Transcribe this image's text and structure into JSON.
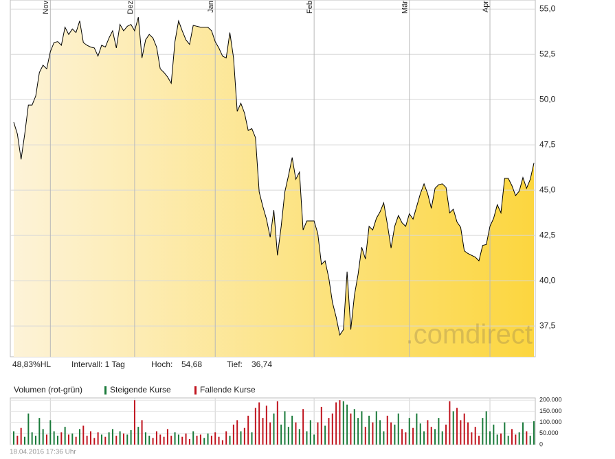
{
  "chart_data": {
    "type": "area",
    "color": "#000000",
    "fill_from": "#fdf3d8",
    "fill_to": "#fcd63f",
    "categories": [
      null,
      null,
      null,
      null,
      null,
      null,
      null,
      null,
      null,
      null,
      "Nov",
      null,
      null,
      null,
      null,
      null,
      null,
      null,
      null,
      null,
      null,
      null,
      null,
      null,
      null,
      null,
      null,
      null,
      null,
      null,
      null,
      null,
      null,
      "Dez",
      null,
      null,
      null,
      null,
      null,
      null,
      null,
      null,
      null,
      null,
      null,
      null,
      null,
      null,
      null,
      null,
      null,
      null,
      null,
      null,
      null,
      "Jan",
      null,
      null,
      null,
      null,
      null,
      null,
      null,
      null,
      null,
      null,
      null,
      null,
      null,
      null,
      null,
      null,
      null,
      null,
      null,
      null,
      null,
      null,
      null,
      null,
      null,
      null,
      "Feb",
      null,
      null,
      null,
      null,
      null,
      null,
      null,
      null,
      null,
      null,
      null,
      null,
      null,
      null,
      null,
      null,
      null,
      null,
      null,
      null,
      null,
      null,
      null,
      null,
      null,
      "Mär",
      null,
      null,
      null,
      null,
      null,
      null,
      null,
      null,
      null,
      null,
      null,
      null,
      null,
      null,
      null,
      null,
      null,
      null,
      null,
      null,
      null,
      "Apr",
      null,
      null,
      null,
      null,
      null,
      null,
      null,
      null,
      null,
      null,
      null,
      null
    ],
    "values": [
      48.75,
      48.1,
      46.7,
      48.1,
      49.7,
      49.7,
      50.2,
      51.5,
      51.9,
      51.7,
      52.65,
      53.15,
      53.2,
      53.0,
      54.0,
      53.6,
      53.9,
      53.7,
      54.35,
      53.15,
      53.0,
      52.9,
      52.85,
      52.4,
      53.0,
      52.9,
      53.4,
      53.8,
      52.85,
      54.15,
      53.8,
      54.05,
      54.15,
      53.8,
      54.55,
      52.3,
      53.3,
      53.6,
      53.4,
      52.9,
      51.7,
      51.5,
      51.25,
      50.9,
      53.2,
      54.35,
      53.8,
      53.3,
      53.05,
      54.1,
      54.05,
      54.0,
      54.0,
      54.0,
      53.8,
      53.2,
      52.85,
      52.4,
      52.3,
      53.7,
      52.3,
      49.35,
      49.8,
      49.25,
      48.3,
      48.4,
      47.9,
      44.9,
      44.1,
      43.4,
      42.4,
      43.9,
      41.4,
      43.0,
      44.9,
      45.8,
      46.8,
      45.6,
      46.0,
      42.8,
      43.3,
      43.3,
      43.3,
      42.6,
      40.9,
      41.1,
      40.15,
      38.8,
      38.0,
      37.0,
      37.3,
      40.5,
      37.3,
      39.2,
      40.35,
      41.85,
      41.2,
      43.0,
      42.8,
      43.45,
      43.8,
      44.3,
      43.1,
      41.8,
      43.0,
      43.6,
      43.2,
      43.0,
      43.7,
      43.4,
      44.1,
      44.8,
      45.35,
      44.8,
      44.0,
      45.1,
      45.3,
      45.35,
      45.15,
      43.75,
      43.95,
      43.25,
      42.95,
      41.65,
      41.5,
      41.4,
      41.3,
      41.1,
      41.95,
      42.0,
      43.0,
      43.45,
      44.2,
      43.75,
      45.65,
      45.65,
      45.25,
      44.7,
      44.95,
      45.7,
      45.1,
      45.6,
      46.5
    ],
    "ylim": [
      35.8,
      55.5
    ],
    "yticks": [
      {
        "value": 37.5,
        "label": "37,5"
      },
      {
        "value": 40,
        "label": "40,0"
      },
      {
        "value": 42.5,
        "label": "42,5"
      },
      {
        "value": 45,
        "label": "45,0"
      },
      {
        "value": 47.5,
        "label": "47,5"
      },
      {
        "value": 50,
        "label": "50,0"
      },
      {
        "value": 52.5,
        "label": "52,5"
      },
      {
        "value": 55,
        "label": "55,0"
      }
    ],
    "grid": true,
    "watermark": ".comdirect",
    "stats": {
      "range": "48,83%HL",
      "interval": "Intervall: 1 Tag",
      "high_label": "Hoch:",
      "high": "54,68",
      "low_label": "Tief:",
      "low": "36,74"
    },
    "volume": {
      "type": "bar",
      "title": "Volumen (rot-grün)",
      "ylim": [
        0,
        210000
      ],
      "yticks": [
        0,
        {
          "value": 50000,
          "label": "50.000"
        },
        {
          "value": 100000,
          "label": "100.000"
        },
        {
          "value": 150000,
          "label": "150.000"
        },
        {
          "value": 200000,
          "label": "200.000"
        }
      ],
      "series": [
        {
          "name": "Steigende Kurse",
          "color": "#1a7a3a",
          "values": [
            60000,
            null,
            null,
            35000,
            140000,
            55000,
            40000,
            120000,
            70000,
            null,
            110000,
            60000,
            40000,
            null,
            80000,
            null,
            50000,
            null,
            70000,
            null,
            null,
            null,
            null,
            null,
            45000,
            null,
            55000,
            70000,
            null,
            60000,
            null,
            45000,
            65000,
            null,
            80000,
            null,
            55000,
            40000,
            null,
            null,
            null,
            null,
            null,
            null,
            55000,
            45000,
            null,
            null,
            null,
            60000,
            null,
            null,
            30000,
            50000,
            null,
            null,
            null,
            null,
            null,
            40000,
            null,
            null,
            60000,
            null,
            null,
            55000,
            null,
            null,
            null,
            null,
            null,
            140000,
            null,
            90000,
            150000,
            80000,
            130000,
            null,
            70000,
            null,
            60000,
            110000,
            45000,
            null,
            null,
            85000,
            null,
            null,
            null,
            null,
            195000,
            180000,
            null,
            160000,
            120000,
            150000,
            null,
            130000,
            null,
            150000,
            110000,
            60000,
            null,
            null,
            90000,
            140000,
            null,
            null,
            120000,
            null,
            140000,
            95000,
            60000,
            null,
            null,
            70000,
            120000,
            60000,
            null,
            null,
            150000,
            null,
            null,
            null,
            null,
            null,
            null,
            null,
            120000,
            150000,
            60000,
            90000,
            45000,
            null,
            100000,
            40000,
            null,
            null,
            55000,
            100000,
            null,
            40000,
            105000
          ]
        },
        {
          "name": "Fallende Kurse",
          "color": "#c0141e",
          "values": [
            null,
            40000,
            75000,
            null,
            null,
            null,
            null,
            null,
            null,
            45000,
            null,
            null,
            null,
            55000,
            null,
            45000,
            null,
            35000,
            null,
            85000,
            40000,
            60000,
            30000,
            55000,
            null,
            35000,
            null,
            null,
            40000,
            null,
            50000,
            null,
            null,
            200000,
            null,
            110000,
            null,
            null,
            30000,
            60000,
            45000,
            35000,
            70000,
            40000,
            null,
            null,
            35000,
            50000,
            25000,
            null,
            40000,
            45000,
            null,
            null,
            40000,
            55000,
            35000,
            20000,
            60000,
            null,
            90000,
            110000,
            null,
            75000,
            130000,
            null,
            165000,
            190000,
            120000,
            175000,
            100000,
            null,
            195000,
            null,
            null,
            null,
            null,
            100000,
            null,
            160000,
            null,
            null,
            null,
            100000,
            170000,
            null,
            120000,
            140000,
            190000,
            200000,
            null,
            null,
            140000,
            null,
            null,
            null,
            80000,
            null,
            100000,
            null,
            null,
            null,
            130000,
            100000,
            null,
            null,
            70000,
            55000,
            null,
            75000,
            null,
            null,
            null,
            110000,
            80000,
            null,
            null,
            null,
            90000,
            195000,
            null,
            165000,
            110000,
            140000,
            100000,
            55000,
            80000,
            40000,
            null,
            null,
            null,
            null,
            null,
            50000,
            null,
            null,
            70000,
            45000,
            null,
            null,
            60000,
            null,
            null
          ]
        }
      ]
    },
    "timestamp": "18.04.2016 17:36 Uhr"
  }
}
